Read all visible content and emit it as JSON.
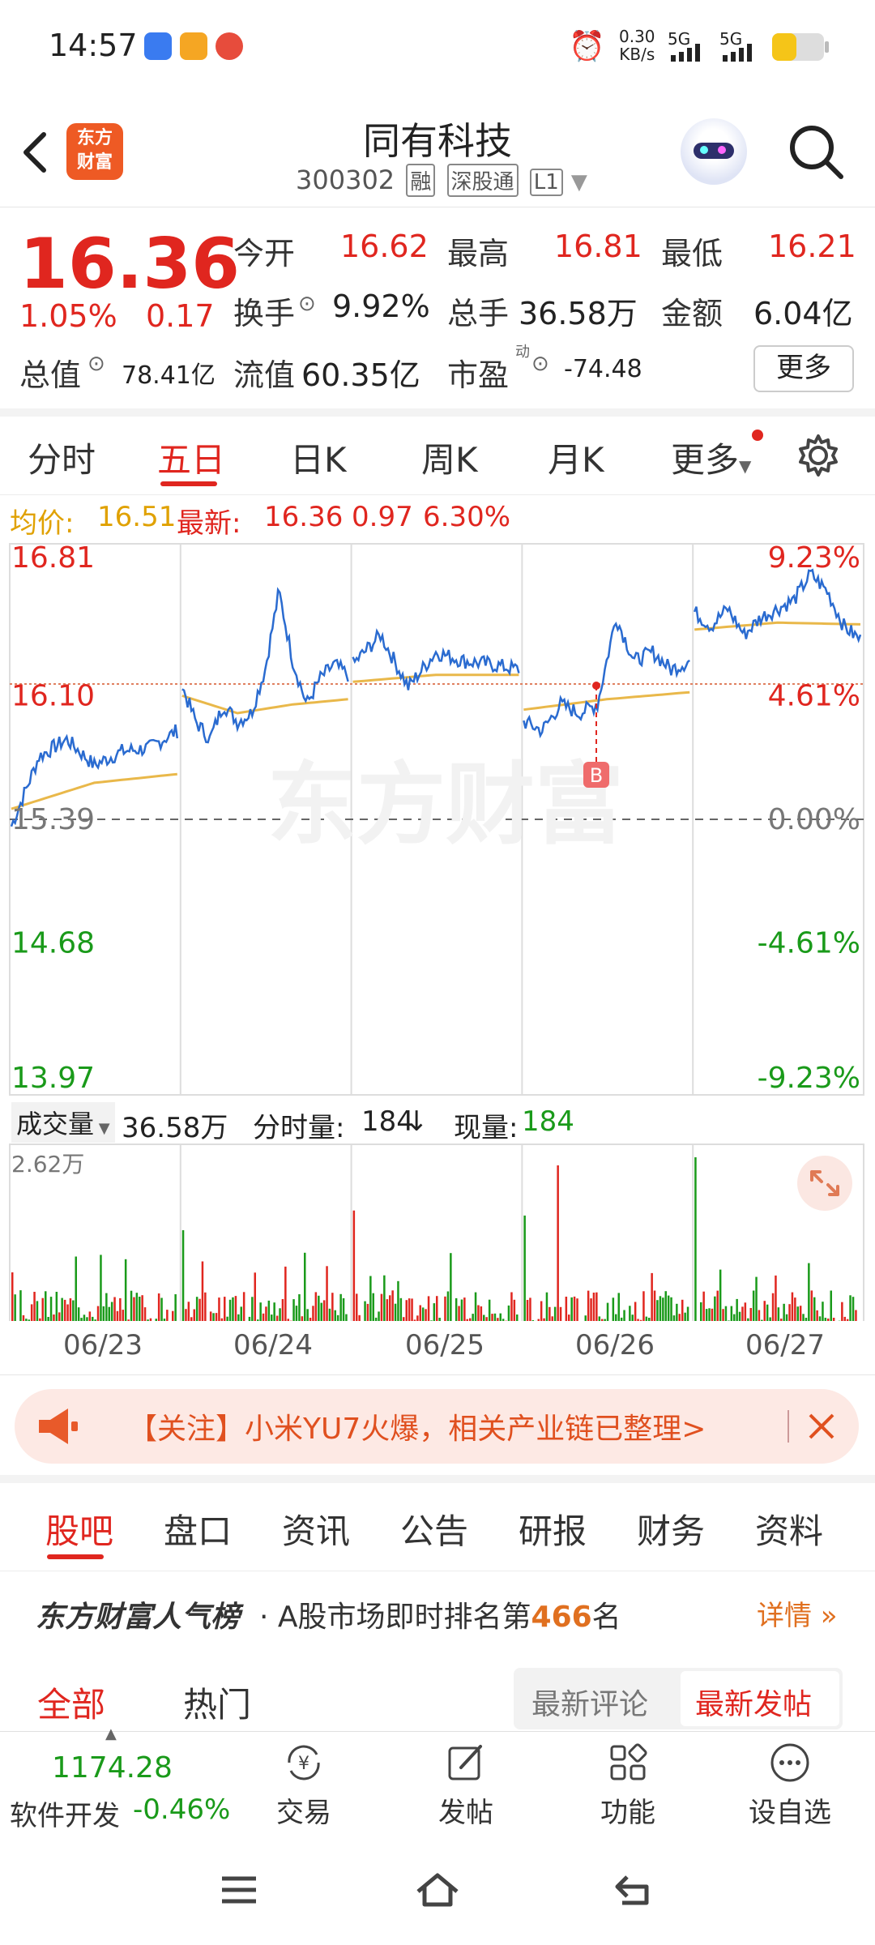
{
  "status_bar": {
    "time": "14:57",
    "net_speed": "0.30",
    "net_unit": "KB/s",
    "signal1": "5G",
    "signal2": "5G"
  },
  "header": {
    "back_icon": "chevron-left-icon",
    "logo_text_1": "东方",
    "logo_text_2": "财富",
    "stock_name": "同有科技",
    "stock_code": "300302",
    "tags": [
      "融",
      "深股通",
      "L1"
    ]
  },
  "quote": {
    "price": "16.36",
    "change_pct": "1.05%",
    "change": "0.17",
    "open_label": "今开",
    "open": "16.62",
    "high_label": "最高",
    "high": "16.81",
    "low_label": "最低",
    "low": "16.21",
    "turnover_label": "换手",
    "turnover": "9.92%",
    "volume_label": "总手",
    "volume": "36.58万",
    "amount_label": "金额",
    "amount": "6.04亿",
    "mcap_label": "总值",
    "mcap": "78.41亿",
    "float_label": "流值",
    "float": "60.35亿",
    "pe_label": "市盈",
    "pe_sup": "动",
    "pe": "-74.48",
    "more_label": "更多"
  },
  "chart_tabs": {
    "items": [
      "分时",
      "五日",
      "日K",
      "周K",
      "月K",
      "更多"
    ],
    "active_index": 1
  },
  "info_line": {
    "avg_label": "均价:",
    "avg": "16.51",
    "latest_label": "最新:",
    "latest": "16.36",
    "chg": "0.97",
    "chg_pct": "6.30%"
  },
  "chart_data": {
    "type": "line",
    "x": [
      "06/23",
      "06/24",
      "06/25",
      "06/26",
      "06/27"
    ],
    "ylim": [
      13.97,
      16.81
    ],
    "y_ticks_left": [
      "16.81",
      "16.10",
      "15.39",
      "14.68",
      "13.97"
    ],
    "y_ticks_right": [
      "9.23%",
      "4.61%",
      "0.00%",
      "-4.61%",
      "-9.23%"
    ],
    "reference_price": 15.39,
    "marker_label": "B",
    "series": [],
    "watermark": "东方财富"
  },
  "volume": {
    "label": "成交量",
    "total": "36.58万",
    "intraday_label": "分时量:",
    "intraday": "184",
    "current_label": "现量:",
    "current": "184",
    "max_tick": "2.62万"
  },
  "banner": {
    "text": "【关注】小米YU7火爆，相关产业链已整理>"
  },
  "section_tabs": {
    "items": [
      "股吧",
      "盘口",
      "资讯",
      "公告",
      "研报",
      "财务",
      "资料"
    ],
    "active_index": 0
  },
  "popularity": {
    "brand": "东方财富人气榜",
    "text_prefix": "· A股市场即时排名第",
    "rank": "466",
    "text_suffix": "名",
    "detail": "详情"
  },
  "filters": {
    "left": [
      "全部",
      "热门"
    ],
    "right": [
      "最新评论",
      "最新发帖"
    ]
  },
  "toolbar": {
    "index_value": "1174.28",
    "index_name": "软件开发",
    "index_chg": "-0.46%",
    "items": [
      "交易",
      "发帖",
      "功能",
      "设自选"
    ]
  }
}
